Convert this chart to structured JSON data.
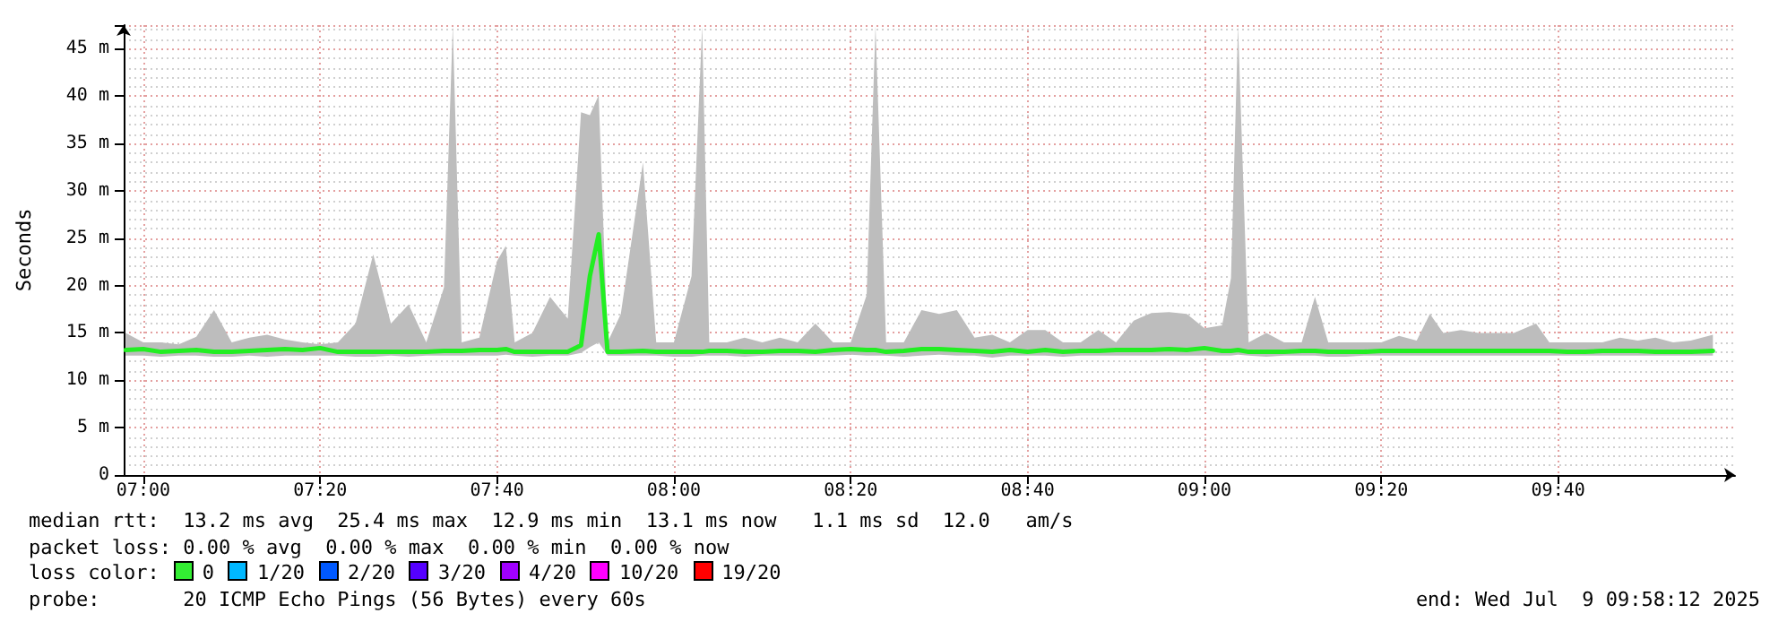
{
  "chart_data": {
    "type": "line",
    "ylabel": "Seconds",
    "grid": true,
    "marker": "none",
    "line_style": "solid",
    "xlim": [
      6.963,
      10.0
    ],
    "xticks": [
      {
        "value": 7,
        "label": "07:00"
      },
      {
        "value": 7.3333,
        "label": "07:20"
      },
      {
        "value": 7.6667,
        "label": "07:40"
      },
      {
        "value": 8,
        "label": "08:00"
      },
      {
        "value": 8.3333,
        "label": "08:20"
      },
      {
        "value": 8.6667,
        "label": "08:40"
      },
      {
        "value": 9,
        "label": "09:00"
      },
      {
        "value": 9.3333,
        "label": "09:20"
      },
      {
        "value": 9.6667,
        "label": "09:40"
      }
    ],
    "ylim": [
      0,
      47.5
    ],
    "yticks": [
      0,
      {
        "value": 5,
        "label": "5 m"
      },
      {
        "value": 10,
        "label": "10 m"
      },
      {
        "value": 15,
        "label": "15 m"
      },
      {
        "value": 20,
        "label": "20 m"
      },
      {
        "value": 25,
        "label": "25 m"
      },
      {
        "value": 30,
        "label": "30 m"
      },
      {
        "value": 35,
        "label": "35 m"
      },
      {
        "value": 40,
        "label": "40 m"
      },
      {
        "value": 45,
        "label": "45 m"
      }
    ],
    "x": [
      6.9667,
      7,
      7.0333,
      7.0667,
      7.1,
      7.1333,
      7.1667,
      7.2,
      7.2333,
      7.2667,
      7.3,
      7.3333,
      7.3667,
      7.4,
      7.4333,
      7.4667,
      7.5,
      7.5333,
      7.5667,
      7.5833,
      7.6,
      7.6333,
      7.6667,
      7.6833,
      7.7,
      7.7333,
      7.7667,
      7.8,
      7.825,
      7.8417,
      7.8583,
      7.875,
      7.9,
      7.9417,
      7.9667,
      8,
      8.0333,
      8.0533,
      8.0667,
      8.1,
      8.1333,
      8.1667,
      8.2,
      8.2333,
      8.2667,
      8.3,
      8.3333,
      8.3633,
      8.38,
      8.4,
      8.4333,
      8.4667,
      8.5,
      8.5333,
      8.5667,
      8.6,
      8.6333,
      8.6667,
      8.7,
      8.7333,
      8.7667,
      8.8,
      8.8333,
      8.8667,
      8.9,
      8.9333,
      8.9667,
      9,
      9.0333,
      9.05,
      9.0633,
      9.0833,
      9.1167,
      9.15,
      9.1833,
      9.2083,
      9.2333,
      9.2667,
      9.3,
      9.3333,
      9.3667,
      9.4,
      9.425,
      9.45,
      9.4833,
      9.5167,
      9.55,
      9.5833,
      9.625,
      9.65,
      9.6833,
      9.7167,
      9.75,
      9.7833,
      9.8167,
      9.85,
      9.8833,
      9.9167,
      9.9583
    ],
    "series": [
      {
        "color": "#22ee22",
        "values": [
          13.2,
          13.3,
          13,
          13.1,
          13.2,
          13,
          13,
          13.1,
          13.2,
          13.3,
          13.2,
          13.4,
          13,
          13,
          13,
          13,
          13,
          13,
          13.1,
          13.1,
          13.1,
          13.2,
          13.2,
          13.3,
          13,
          13,
          13,
          13,
          13.7,
          21,
          25.4,
          13,
          13,
          13.1,
          13,
          13,
          13,
          13,
          13.1,
          13.1,
          13,
          13,
          13.1,
          13.1,
          13,
          13.2,
          13.3,
          13.2,
          13.2,
          13,
          13.1,
          13.3,
          13.3,
          13.2,
          13.1,
          13,
          13.2,
          13,
          13.2,
          13,
          13.1,
          13.1,
          13.2,
          13.2,
          13.2,
          13.3,
          13.2,
          13.4,
          13.1,
          13.1,
          13.2,
          13,
          13,
          13,
          13.1,
          13.1,
          13,
          13,
          13,
          13.1,
          13.1,
          13.1,
          13.1,
          13.1,
          13.1,
          13.1,
          13.1,
          13.1,
          13.1,
          13.1,
          13,
          13,
          13.1,
          13.1,
          13.1,
          13,
          13,
          13,
          13.1
        ],
        "lower": [
          12.6,
          12.6,
          12.5,
          12.6,
          12.6,
          12.5,
          12.5,
          12.6,
          12.5,
          12.6,
          12.6,
          12.6,
          12.6,
          12.5,
          12.5,
          12.6,
          12.5,
          12.6,
          12.6,
          12.6,
          12.6,
          12.6,
          12.6,
          12.7,
          12.6,
          12.5,
          12.6,
          12.6,
          12.9,
          13.5,
          14,
          12.6,
          12.6,
          12.6,
          12.6,
          12.5,
          12.5,
          12.6,
          12.6,
          12.6,
          12.5,
          12.6,
          12.6,
          12.6,
          12.6,
          12.6,
          12.7,
          12.6,
          12.6,
          12.6,
          12.5,
          12.6,
          12.7,
          12.6,
          12.6,
          12.4,
          12.6,
          12.6,
          12.6,
          12.5,
          12.6,
          12.6,
          12.6,
          12.6,
          12.6,
          12.6,
          12.6,
          12.6,
          12.6,
          12.6,
          12.7,
          12.6,
          12.5,
          12.6,
          12.6,
          12.6,
          12.5,
          12.5,
          12.6,
          12.6,
          12.6,
          12.6,
          12.6,
          12.6,
          12.6,
          12.6,
          12.6,
          12.6,
          12.6,
          12.6,
          12.6,
          12.6,
          12.6,
          12.6,
          12.6,
          12.6,
          12.6,
          12.6,
          12.6
        ],
        "upper": [
          15,
          14,
          14,
          13.8,
          14.6,
          17.4,
          14,
          14.5,
          14.8,
          14.3,
          14,
          13.8,
          14,
          16,
          23.3,
          16,
          18,
          14,
          19.8,
          47.4,
          14,
          14.5,
          22.6,
          24.2,
          14,
          15,
          18.8,
          16.5,
          38.3,
          38,
          40.1,
          14,
          17,
          33,
          14,
          14,
          21,
          47.4,
          14,
          14,
          14.5,
          14,
          14.5,
          14,
          16,
          14,
          14,
          19,
          47.4,
          14,
          14,
          17.4,
          17,
          17.4,
          14.5,
          14.8,
          14,
          15.3,
          15.3,
          14,
          14,
          15.3,
          14,
          16.3,
          17.1,
          17.2,
          17,
          15.5,
          15.8,
          20.8,
          47.4,
          14,
          15,
          14,
          14,
          18.8,
          14,
          14,
          14,
          14,
          14.7,
          14.2,
          17,
          15,
          15.3,
          15,
          15,
          15,
          16,
          14,
          14,
          14,
          14,
          14.5,
          14.2,
          14.5,
          14,
          14.2,
          14.8
        ]
      }
    ],
    "annotations": [
      "median rtt:  13.2 ms avg  25.4 ms max  12.9 ms min  13.1 ms now   1.1 ms sd  12.0   am/s",
      "packet loss: 0.00 % avg  0.00 % max  0.00 % min  0.00 % now",
      "loss color:",
      "0",
      "1/20",
      "2/20",
      "3/20",
      "4/20",
      "10/20",
      "19/20",
      "probe:       20 ICMP Echo Pings (56 Bytes) every 60s",
      "end: Wed Jul  9 09:58:12 2025"
    ]
  }
}
